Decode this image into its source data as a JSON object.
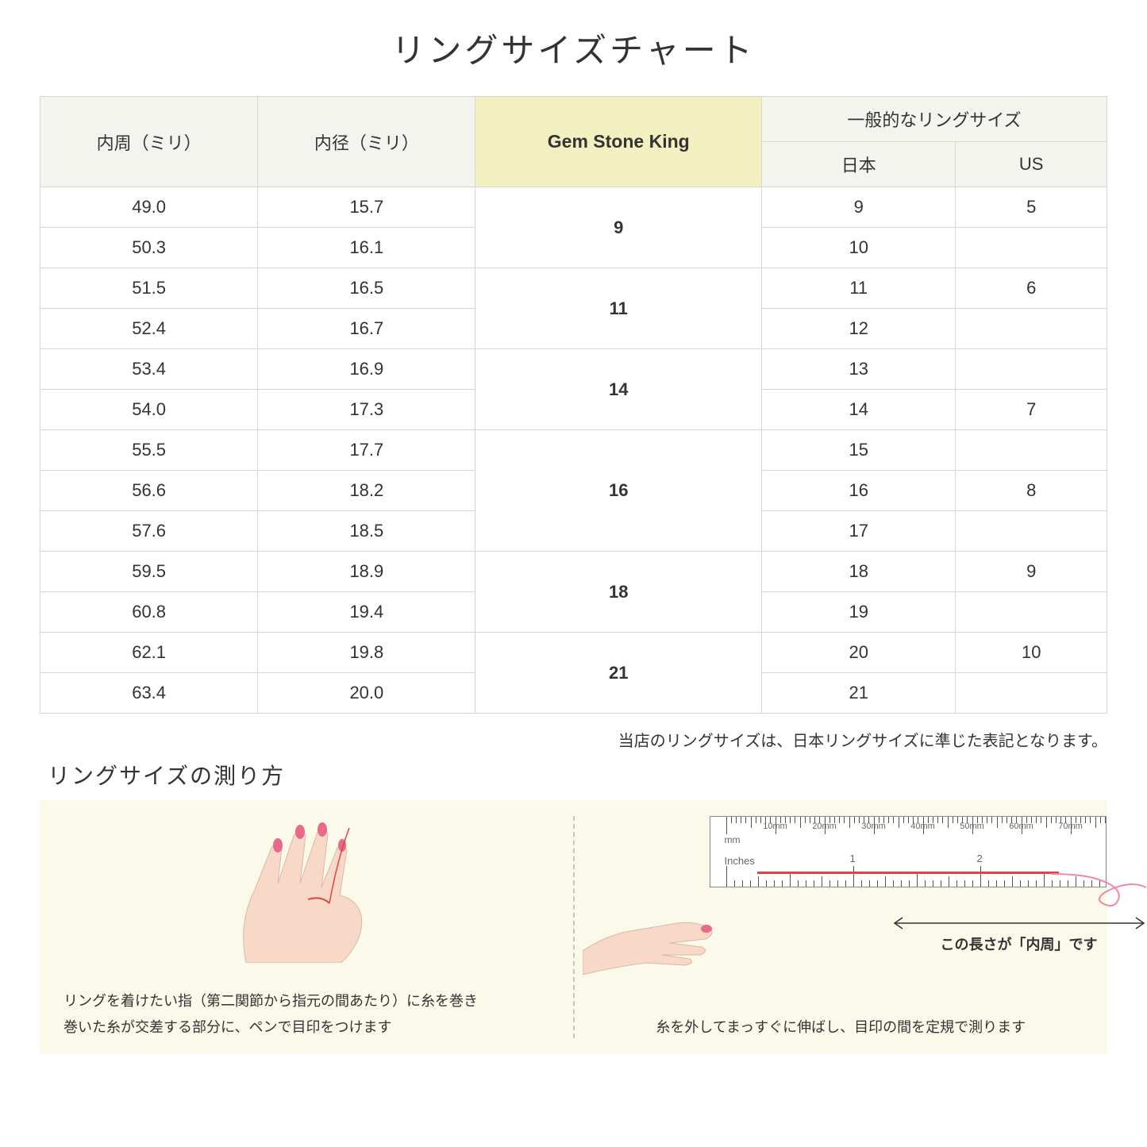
{
  "title": "リングサイズチャート",
  "table": {
    "headers": {
      "col1": "内周（ミリ）",
      "col2": "内径（ミリ）",
      "col3": "Gem Stone King",
      "col4_group": "一般的なリングサイズ",
      "col4a": "日本",
      "col4b": "US"
    },
    "groups": [
      {
        "gsk": "9",
        "rows": [
          {
            "c": "49.0",
            "d": "15.7",
            "jp": "9",
            "us": "5"
          },
          {
            "c": "50.3",
            "d": "16.1",
            "jp": "10",
            "us": ""
          }
        ]
      },
      {
        "gsk": "11",
        "rows": [
          {
            "c": "51.5",
            "d": "16.5",
            "jp": "11",
            "us": "6"
          },
          {
            "c": "52.4",
            "d": "16.7",
            "jp": "12",
            "us": ""
          }
        ]
      },
      {
        "gsk": "14",
        "rows": [
          {
            "c": "53.4",
            "d": "16.9",
            "jp": "13",
            "us": ""
          },
          {
            "c": "54.0",
            "d": "17.3",
            "jp": "14",
            "us": "7"
          }
        ]
      },
      {
        "gsk": "16",
        "rows": [
          {
            "c": "55.5",
            "d": "17.7",
            "jp": "15",
            "us": ""
          },
          {
            "c": "56.6",
            "d": "18.2",
            "jp": "16",
            "us": "8"
          },
          {
            "c": "57.6",
            "d": "18.5",
            "jp": "17",
            "us": ""
          }
        ]
      },
      {
        "gsk": "18",
        "rows": [
          {
            "c": "59.5",
            "d": "18.9",
            "jp": "18",
            "us": "9"
          },
          {
            "c": "60.8",
            "d": "19.4",
            "jp": "19",
            "us": ""
          }
        ]
      },
      {
        "gsk": "21",
        "rows": [
          {
            "c": "62.1",
            "d": "19.8",
            "jp": "20",
            "us": "10"
          },
          {
            "c": "63.4",
            "d": "20.0",
            "jp": "21",
            "us": ""
          }
        ]
      }
    ]
  },
  "note": "当店のリングサイズは、日本リングサイズに準じた表記となります。",
  "measure": {
    "title": "リングサイズの測り方",
    "left_caption_1": "リングを着けたい指（第二関節から指元の間あたり）に糸を巻き",
    "left_caption_2": "巻いた糸が交差する部分に、ペンで目印をつけます",
    "right_caption": "糸を外してまっすぐに伸ばし、目印の間を定規で測ります",
    "arrow_label": "この長さが「内周」です",
    "ruler": {
      "mm_unit": "mm",
      "inch_unit": "Inches",
      "mm_marks": [
        "10mm",
        "20mm",
        "30mm",
        "40mm",
        "50mm",
        "60mm",
        "70mm"
      ],
      "inch_marks": [
        "1",
        "2"
      ]
    }
  },
  "colors": {
    "header_bg": "#f4f4ee",
    "highlight_bg": "#f2f0c0",
    "border": "#d8d8d0",
    "panel_bg": "#fbf9ea",
    "thread": "#d44",
    "skin": "#f8d9c8",
    "nail": "#e86a8a"
  }
}
